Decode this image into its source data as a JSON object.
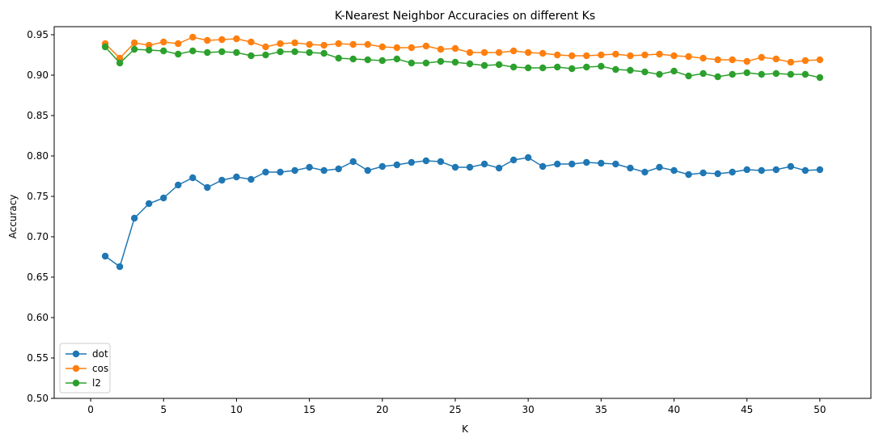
{
  "chart_data": {
    "type": "line",
    "title": "K-Nearest Neighbor Accuracies on different Ks",
    "xlabel": "K",
    "ylabel": "Accuracy",
    "xlim": [
      -2.5,
      53.5
    ],
    "ylim": [
      0.5,
      0.96
    ],
    "xticks": [
      0,
      5,
      10,
      15,
      20,
      25,
      30,
      35,
      40,
      45,
      50
    ],
    "yticks": [
      0.5,
      0.55,
      0.6,
      0.65,
      0.7,
      0.75,
      0.8,
      0.85,
      0.9,
      0.95
    ],
    "ytick_labels": [
      "0.50",
      "0.55",
      "0.60",
      "0.65",
      "0.70",
      "0.75",
      "0.80",
      "0.85",
      "0.90",
      "0.95"
    ],
    "grid": false,
    "legend_position": "bottom-left",
    "x": [
      1,
      2,
      3,
      4,
      5,
      6,
      7,
      8,
      9,
      10,
      11,
      12,
      13,
      14,
      15,
      16,
      17,
      18,
      19,
      20,
      21,
      22,
      23,
      24,
      25,
      26,
      27,
      28,
      29,
      30,
      31,
      32,
      33,
      34,
      35,
      36,
      37,
      38,
      39,
      40,
      41,
      42,
      43,
      44,
      45,
      46,
      47,
      48,
      49,
      50
    ],
    "series": [
      {
        "name": "dot",
        "color": "#1f77b4",
        "values": [
          0.676,
          0.663,
          0.723,
          0.741,
          0.748,
          0.764,
          0.773,
          0.761,
          0.77,
          0.774,
          0.771,
          0.78,
          0.78,
          0.782,
          0.786,
          0.782,
          0.784,
          0.793,
          0.782,
          0.787,
          0.789,
          0.792,
          0.794,
          0.793,
          0.786,
          0.786,
          0.79,
          0.785,
          0.795,
          0.798,
          0.787,
          0.79,
          0.79,
          0.792,
          0.791,
          0.79,
          0.785,
          0.78,
          0.786,
          0.782,
          0.777,
          0.779,
          0.778,
          0.78,
          0.783,
          0.782,
          0.783,
          0.787,
          0.782,
          0.783
        ]
      },
      {
        "name": "cos",
        "color": "#ff7f0e",
        "values": [
          0.939,
          0.921,
          0.94,
          0.937,
          0.941,
          0.939,
          0.947,
          0.943,
          0.944,
          0.945,
          0.941,
          0.935,
          0.939,
          0.94,
          0.938,
          0.937,
          0.939,
          0.938,
          0.938,
          0.935,
          0.934,
          0.934,
          0.936,
          0.932,
          0.933,
          0.928,
          0.928,
          0.928,
          0.93,
          0.928,
          0.927,
          0.925,
          0.924,
          0.924,
          0.925,
          0.926,
          0.924,
          0.925,
          0.926,
          0.924,
          0.923,
          0.921,
          0.919,
          0.919,
          0.917,
          0.922,
          0.92,
          0.916,
          0.918,
          0.919
        ]
      },
      {
        "name": "l2",
        "color": "#2ca02c",
        "values": [
          0.935,
          0.915,
          0.932,
          0.931,
          0.93,
          0.926,
          0.93,
          0.928,
          0.929,
          0.928,
          0.924,
          0.925,
          0.929,
          0.929,
          0.928,
          0.927,
          0.921,
          0.92,
          0.919,
          0.918,
          0.92,
          0.915,
          0.915,
          0.917,
          0.916,
          0.914,
          0.912,
          0.913,
          0.91,
          0.909,
          0.909,
          0.91,
          0.908,
          0.91,
          0.911,
          0.907,
          0.906,
          0.904,
          0.901,
          0.905,
          0.899,
          0.902,
          0.898,
          0.901,
          0.903,
          0.901,
          0.902,
          0.901,
          0.901,
          0.897
        ]
      }
    ]
  }
}
